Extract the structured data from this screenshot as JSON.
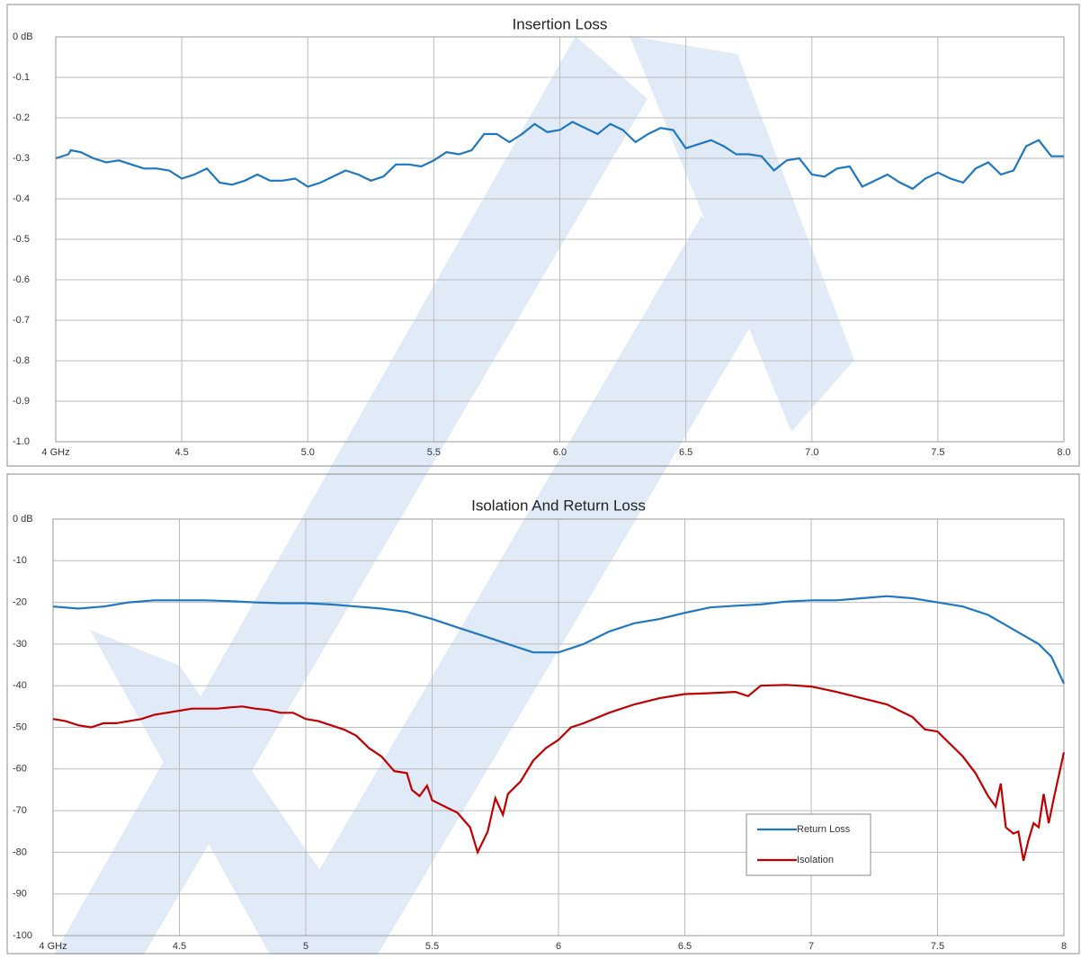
{
  "chart_data": [
    {
      "type": "line",
      "title": "Insertion Loss",
      "color": "#1f77c0",
      "grid": true,
      "x": [
        4.0,
        4.05,
        4.06,
        4.1,
        4.15,
        4.2,
        4.25,
        4.3,
        4.35,
        4.4,
        4.45,
        4.5,
        4.55,
        4.6,
        4.65,
        4.7,
        4.75,
        4.8,
        4.85,
        4.9,
        4.95,
        5.0,
        5.05,
        5.1,
        5.15,
        5.2,
        5.25,
        5.3,
        5.35,
        5.4,
        5.45,
        5.5,
        5.55,
        5.6,
        5.65,
        5.7,
        5.75,
        5.8,
        5.85,
        5.9,
        5.95,
        6.0,
        6.05,
        6.1,
        6.15,
        6.2,
        6.25,
        6.3,
        6.35,
        6.4,
        6.45,
        6.5,
        6.55,
        6.6,
        6.65,
        6.7,
        6.75,
        6.8,
        6.85,
        6.9,
        6.95,
        7.0,
        7.05,
        7.1,
        7.15,
        7.2,
        7.25,
        7.3,
        7.35,
        7.4,
        7.45,
        7.5,
        7.55,
        7.6,
        7.65,
        7.7,
        7.75,
        7.8,
        7.85,
        7.9,
        7.95,
        8.0
      ],
      "values": [
        -0.3,
        -0.29,
        -0.28,
        -0.285,
        -0.3,
        -0.31,
        -0.305,
        -0.315,
        -0.325,
        -0.325,
        -0.33,
        -0.35,
        -0.34,
        -0.325,
        -0.36,
        -0.365,
        -0.355,
        -0.34,
        -0.355,
        -0.355,
        -0.35,
        -0.37,
        -0.36,
        -0.345,
        -0.33,
        -0.34,
        -0.355,
        -0.345,
        -0.315,
        -0.315,
        -0.32,
        -0.305,
        -0.285,
        -0.29,
        -0.28,
        -0.24,
        -0.24,
        -0.26,
        -0.24,
        -0.215,
        -0.235,
        -0.23,
        -0.21,
        -0.225,
        -0.24,
        -0.215,
        -0.23,
        -0.26,
        -0.24,
        -0.225,
        -0.23,
        -0.275,
        -0.265,
        -0.255,
        -0.27,
        -0.29,
        -0.29,
        -0.295,
        -0.33,
        -0.305,
        -0.3,
        -0.34,
        -0.345,
        -0.325,
        -0.32,
        -0.37,
        -0.355,
        -0.34,
        -0.36,
        -0.375,
        -0.35,
        -0.335,
        -0.35,
        -0.36,
        -0.325,
        -0.31,
        -0.34,
        -0.33,
        -0.27,
        -0.255,
        -0.295,
        -0.295
      ],
      "xlim": [
        4,
        8
      ],
      "xticks": [
        {
          "value": 4,
          "label": "4 GHz"
        },
        4.5,
        {
          "value": 5,
          "label": "5.0"
        },
        5.5,
        {
          "value": 6,
          "label": "6.0"
        },
        6.5,
        {
          "value": 7,
          "label": "7.0"
        },
        7.5,
        {
          "value": 8,
          "label": "8.0"
        }
      ],
      "ylim": [
        -1,
        0
      ],
      "yticks": [
        {
          "value": 0,
          "label": "0 dB"
        },
        -0.1,
        -0.2,
        -0.3,
        -0.4,
        -0.5,
        -0.6,
        -0.7,
        -0.8,
        -0.9,
        {
          "value": -1,
          "label": "-1.0"
        }
      ]
    },
    {
      "type": "line",
      "title": "Isolation And Return Loss",
      "grid": true,
      "legend": "lower right",
      "series": [
        {
          "name": "Return Loss",
          "color": "#1f77c0",
          "x": [
            4.0,
            4.1,
            4.2,
            4.3,
            4.4,
            4.5,
            4.6,
            4.7,
            4.8,
            4.9,
            5.0,
            5.1,
            5.2,
            5.3,
            5.4,
            5.5,
            5.6,
            5.7,
            5.8,
            5.9,
            6.0,
            6.1,
            6.2,
            6.3,
            6.4,
            6.5,
            6.6,
            6.7,
            6.8,
            6.9,
            7.0,
            7.1,
            7.2,
            7.3,
            7.4,
            7.5,
            7.6,
            7.7,
            7.8,
            7.9,
            7.95,
            8.0
          ],
          "values": [
            -21,
            -21.5,
            -21,
            -20,
            -19.5,
            -19.5,
            -19.5,
            -19.7,
            -20,
            -20.2,
            -20.2,
            -20.5,
            -21,
            -21.5,
            -22.3,
            -24,
            -26,
            -28,
            -30,
            -32,
            -32,
            -30,
            -27,
            -25,
            -24,
            -22.5,
            -21.2,
            -20.8,
            -20.5,
            -19.8,
            -19.5,
            -19.5,
            -19,
            -18.5,
            -19,
            -20,
            -21,
            -23,
            -26.5,
            -30,
            -33,
            -39.5
          ]
        },
        {
          "name": "Isolation",
          "color": "#c00000",
          "x": [
            4.0,
            4.05,
            4.1,
            4.15,
            4.2,
            4.25,
            4.3,
            4.35,
            4.4,
            4.45,
            4.5,
            4.55,
            4.6,
            4.65,
            4.7,
            4.75,
            4.8,
            4.85,
            4.9,
            4.95,
            5.0,
            5.05,
            5.1,
            5.15,
            5.2,
            5.25,
            5.3,
            5.35,
            5.4,
            5.42,
            5.45,
            5.48,
            5.5,
            5.55,
            5.6,
            5.65,
            5.68,
            5.72,
            5.75,
            5.78,
            5.8,
            5.85,
            5.9,
            5.95,
            6.0,
            6.05,
            6.1,
            6.2,
            6.3,
            6.4,
            6.5,
            6.6,
            6.7,
            6.75,
            6.8,
            6.9,
            7.0,
            7.1,
            7.2,
            7.3,
            7.35,
            7.4,
            7.45,
            7.5,
            7.55,
            7.6,
            7.65,
            7.7,
            7.73,
            7.75,
            7.77,
            7.8,
            7.82,
            7.84,
            7.86,
            7.88,
            7.9,
            7.92,
            7.94,
            7.96,
            8.0
          ],
          "values": [
            -48,
            -48.5,
            -49.5,
            -50,
            -49,
            -49,
            -48.5,
            -48,
            -47,
            -46.5,
            -46,
            -45.5,
            -45.5,
            -45.5,
            -45.2,
            -45,
            -45.5,
            -45.8,
            -46.5,
            -46.5,
            -48,
            -48.5,
            -49.5,
            -50.5,
            -52,
            -55,
            -57,
            -60.5,
            -61,
            -65,
            -66.5,
            -64,
            -67.5,
            -69,
            -70.5,
            -74,
            -80,
            -75,
            -67,
            -71,
            -66,
            -63,
            -58,
            -55,
            -53,
            -50,
            -49,
            -46.5,
            -44.5,
            -43,
            -42,
            -41.8,
            -41.5,
            -42.5,
            -40,
            -39.8,
            -40.2,
            -41.5,
            -43,
            -44.5,
            -46,
            -47.5,
            -50.5,
            -51,
            -54,
            -57,
            -61,
            -66.5,
            -69,
            -63.5,
            -74,
            -75.5,
            -75,
            -82,
            -77,
            -73,
            -74,
            -66,
            -73,
            -67,
            -56
          ]
        }
      ],
      "xlim": [
        4,
        8
      ],
      "xticks": [
        {
          "value": 4,
          "label": "4 GHz"
        },
        4.5,
        5,
        5.5,
        6,
        6.5,
        7,
        7.5,
        8
      ],
      "ylim": [
        -100,
        0
      ],
      "yticks": [
        {
          "value": 0,
          "label": "0 dB"
        },
        -10,
        -20,
        -30,
        -40,
        -50,
        -60,
        -70,
        -80,
        -90,
        -100
      ]
    }
  ]
}
